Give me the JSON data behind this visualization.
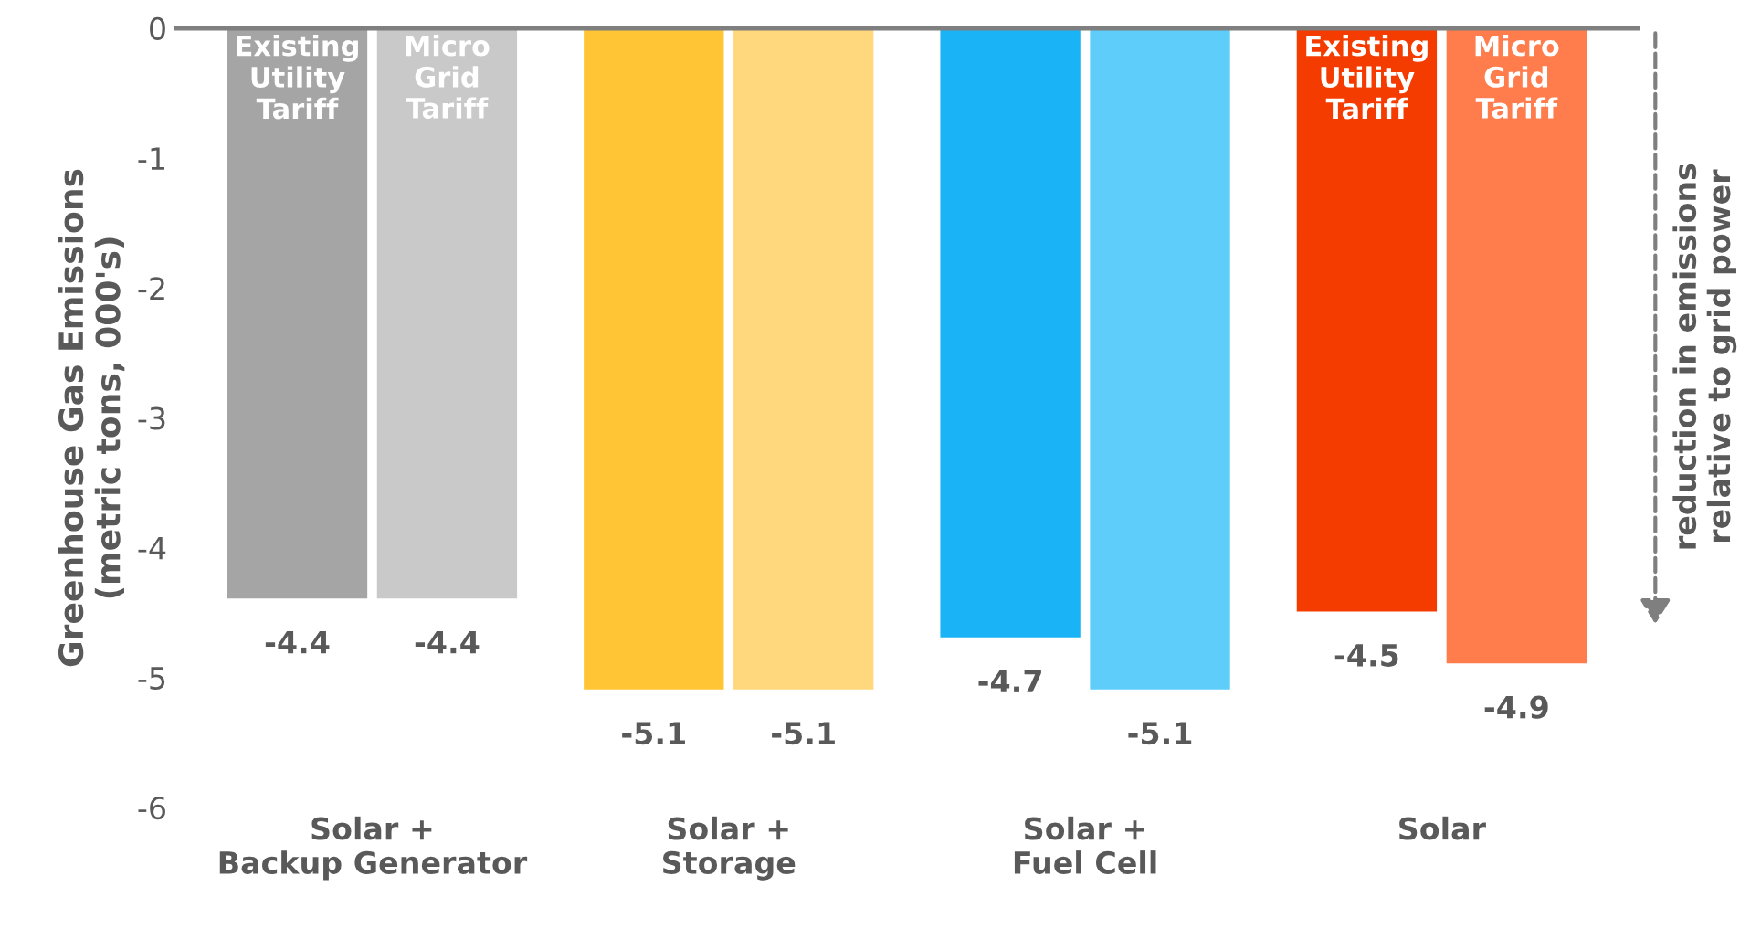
{
  "chart_data": {
    "type": "bar",
    "ylabel": "Greenhouse Gas Emissions\n(metric tons, 000's)",
    "categories": [
      "Solar +\nBackup Generator",
      "Solar +\nStorage",
      "Solar +\nFuel Cell",
      "Solar"
    ],
    "series": [
      {
        "name": "Existing\nUtility\nTariff",
        "colors": [
          "#a5a5a5",
          "#ffc535",
          "#1ab3f6",
          "#f53c00"
        ],
        "values": [
          -4.4,
          -5.1,
          -4.7,
          -4.5
        ]
      },
      {
        "name": "Micro\nGrid\nTariff",
        "colors": [
          "#c9c9c9",
          "#ffd77c",
          "#5fcdfa",
          "#ff7c4c"
        ],
        "values": [
          -4.4,
          -5.1,
          -5.1,
          -4.9
        ]
      }
    ],
    "ylim": [
      -6,
      0
    ],
    "yticks": [
      {
        "value": -6,
        "label": "-6"
      },
      {
        "value": -5,
        "label": "-5"
      },
      {
        "value": -4,
        "label": "-4"
      },
      {
        "value": -3,
        "label": "-3"
      },
      {
        "value": -2,
        "label": "-2"
      },
      {
        "value": -1,
        "label": "-1"
      },
      0
    ],
    "data_labels": true,
    "grid": false,
    "legend": false,
    "annotations": [
      "reduction in emissions\nrelative to grid power"
    ]
  }
}
